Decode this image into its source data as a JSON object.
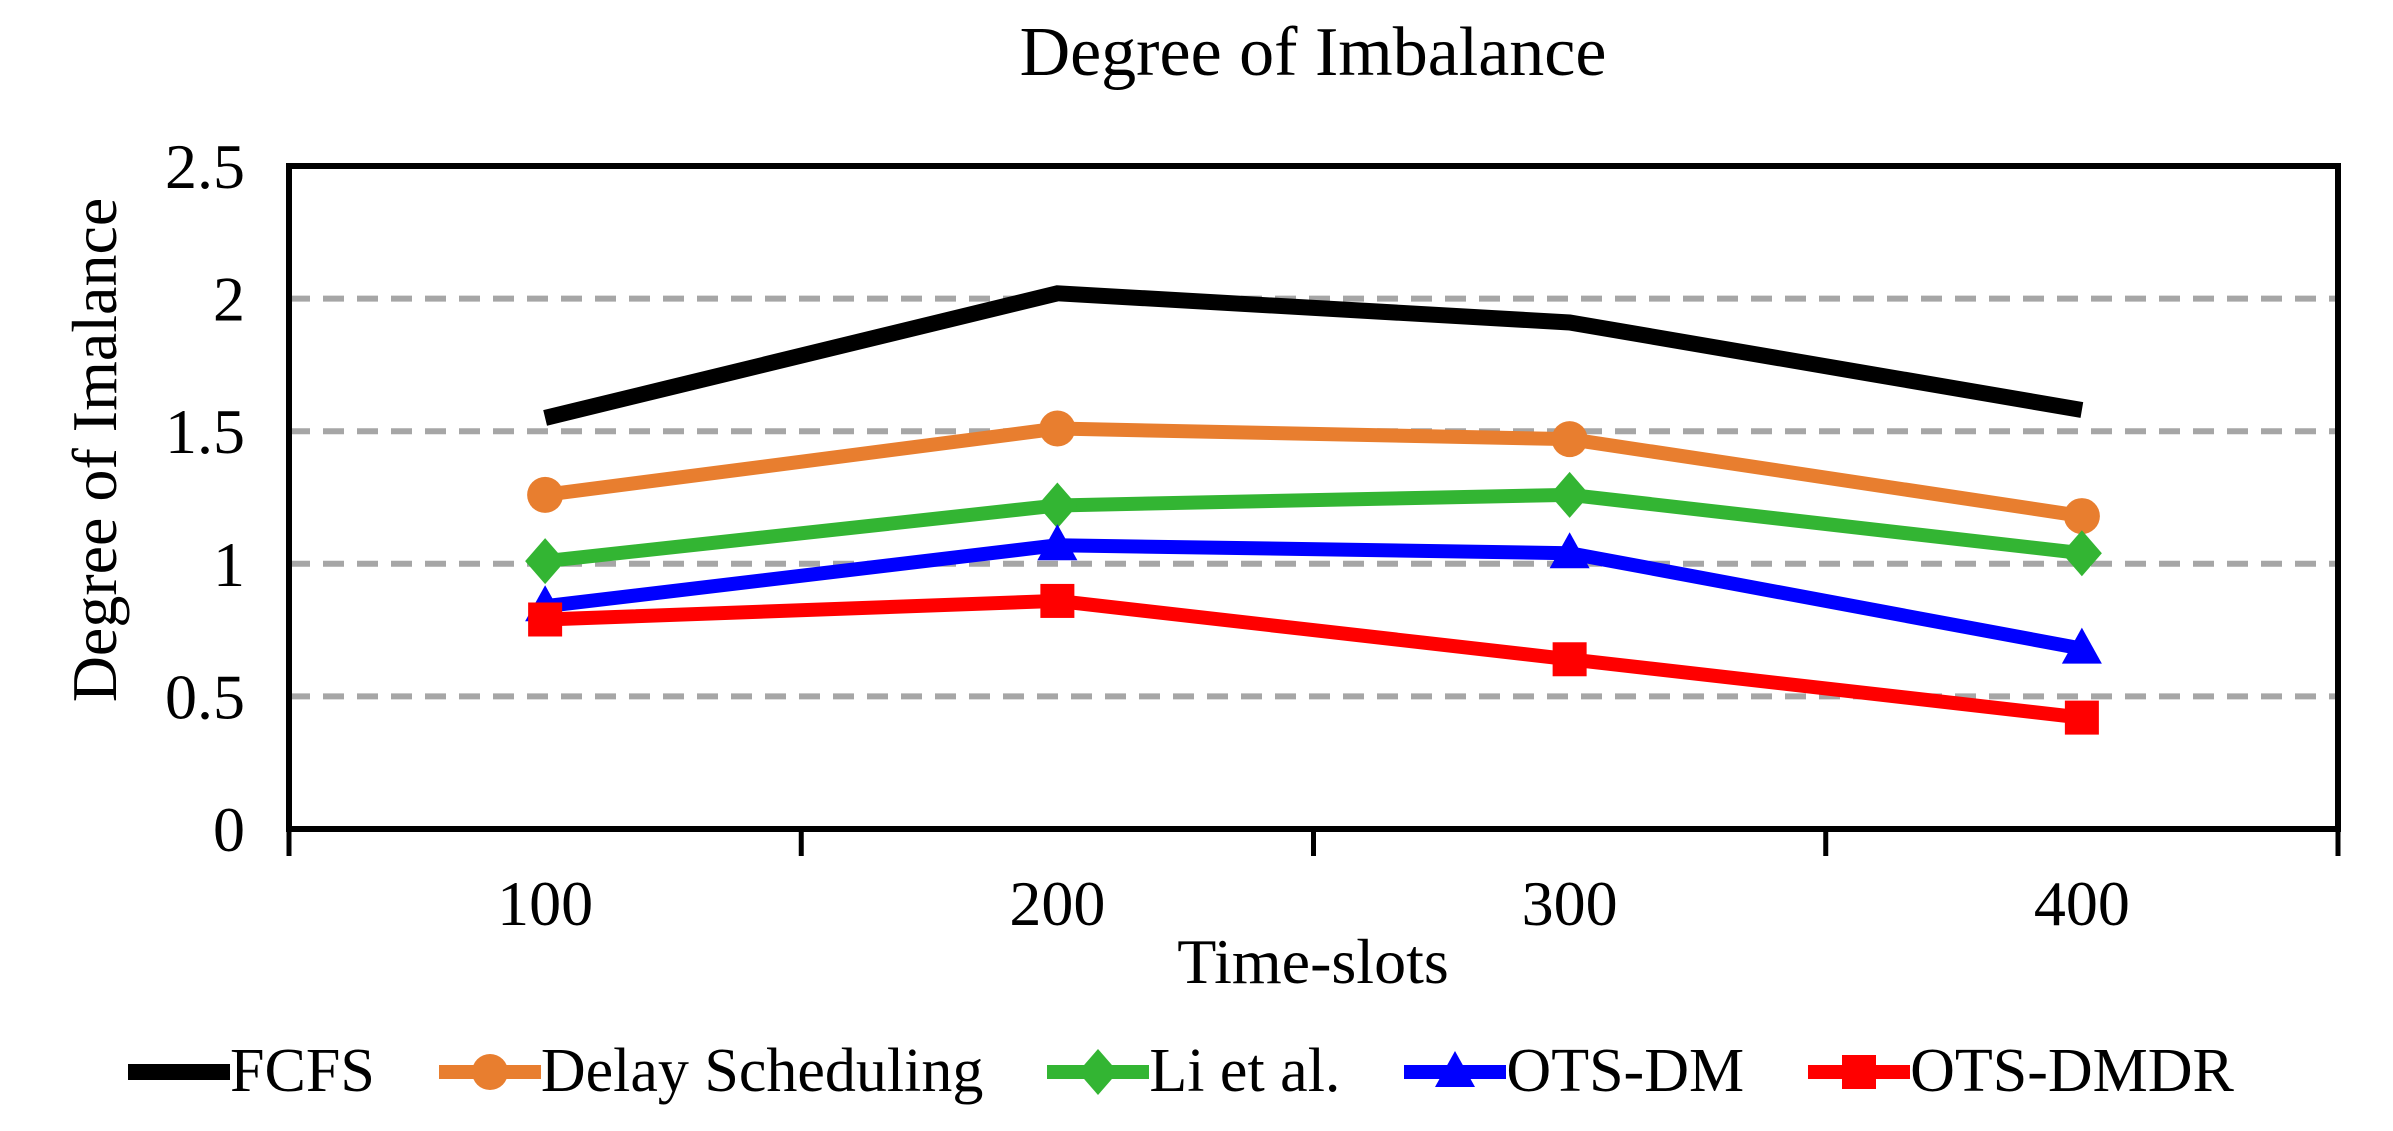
{
  "chart_data": {
    "type": "line",
    "title": "Degree of Imbalance",
    "xlabel": "Time-slots",
    "ylabel": "Degree of Imalance",
    "categories": [
      "100",
      "200",
      "300",
      "400"
    ],
    "y_ticks": [
      "0",
      "0.5",
      "1",
      "1.5",
      "2",
      "2.5"
    ],
    "ylim": [
      0,
      2.5
    ],
    "grid": "horizontal-dashed",
    "legend_position": "bottom",
    "gridline_color": "#A6A6A6",
    "axis_color": "#000000",
    "series": [
      {
        "name": "FCFS",
        "color": "#000000",
        "marker": "none",
        "values": [
          1.55,
          2.02,
          1.91,
          1.58
        ]
      },
      {
        "name": "Delay Scheduling",
        "color": "#E87E2F",
        "marker": "circle",
        "values": [
          1.26,
          1.51,
          1.47,
          1.18
        ]
      },
      {
        "name": "Li et al.",
        "color": "#33B533",
        "marker": "diamond",
        "values": [
          1.01,
          1.22,
          1.26,
          1.04
        ]
      },
      {
        "name": "OTS-DM",
        "color": "#0000FF",
        "marker": "triangle",
        "values": [
          0.84,
          1.07,
          1.04,
          0.68
        ]
      },
      {
        "name": "OTS-DMDR",
        "color": "#FF0000",
        "marker": "square",
        "values": [
          0.79,
          0.86,
          0.64,
          0.42
        ]
      }
    ]
  }
}
